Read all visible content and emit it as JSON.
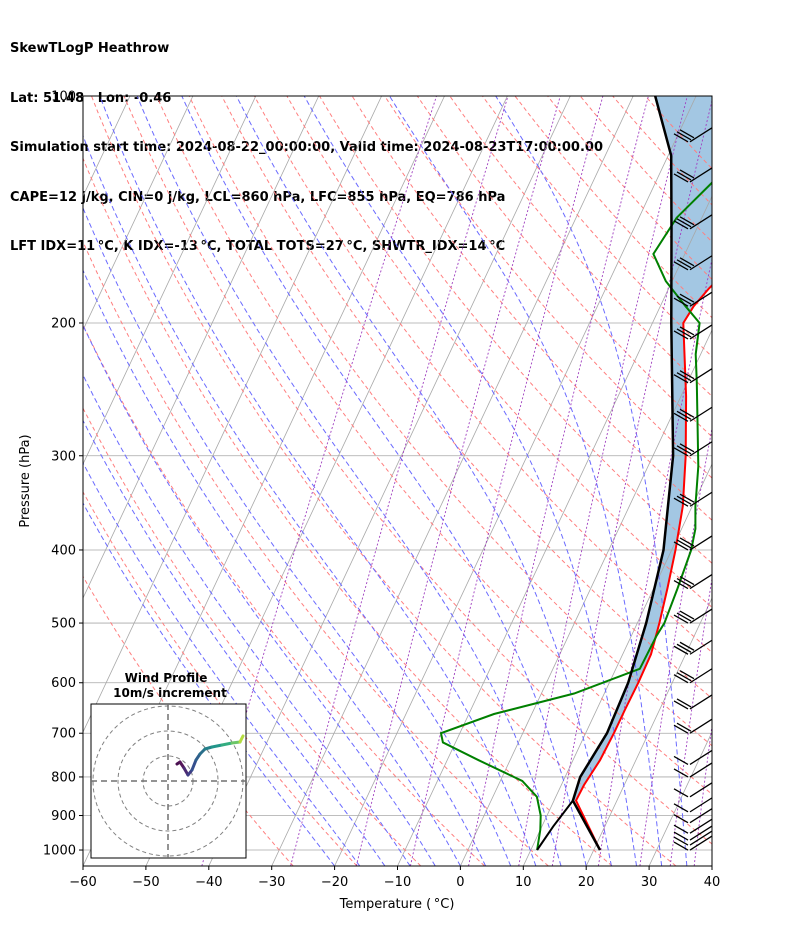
{
  "header": {
    "line1": "SkewTLogP Heathrow",
    "line2": "Lat: 51.48   Lon: -0.46",
    "line3": "Simulation start time: 2024-08-22_00:00:00, Valid time: 2024-08-23T17:00:00.00",
    "line4": "CAPE=12 j/kg, CIN=0 j/kg, LCL=860 hPa, LFC=855 hPa, EQ=786 hPa",
    "line5": "LFT IDX=11 °C, K IDX=-13 °C, TOTAL TOTS=27 °C, SHWTR_IDX=14 °C"
  },
  "hodograph": {
    "title": "Wind Profile",
    "subtitle": "10m/s increment"
  },
  "colors": {
    "temperature": "#ff0000",
    "dewpoint": "#008000",
    "parcel": "#000000",
    "cape_fill": "#7fb2d8",
    "isotherm": "#a8a8a8",
    "dry_adiabat": "#ff7f7f",
    "moist_adiabat": "#6b6bff",
    "mixing_ratio": "#a040c0"
  },
  "chart_data": {
    "type": "line",
    "xlabel": "Temperature ( °C)",
    "ylabel": "Pressure (hPa)",
    "xlim": [
      -60,
      40
    ],
    "ylim": [
      1050,
      100
    ],
    "y_scale": "log",
    "x_ticks": [
      -60,
      -50,
      -40,
      -30,
      -20,
      -10,
      0,
      10,
      20,
      30,
      40
    ],
    "y_ticks": [
      1000,
      900,
      800,
      700,
      600,
      500,
      400,
      300,
      200,
      100
    ],
    "grid": true,
    "series": [
      {
        "key": "temperature",
        "points": [
          [
            21,
            1000
          ],
          [
            13.5,
            860
          ],
          [
            13.6,
            820
          ],
          [
            14.3,
            760
          ],
          [
            14.5,
            700
          ],
          [
            14.5,
            650
          ],
          [
            14.6,
            600
          ],
          [
            14.5,
            550
          ],
          [
            13.5,
            500
          ],
          [
            12.2,
            450
          ],
          [
            10.6,
            400
          ],
          [
            8.5,
            350
          ],
          [
            5.2,
            300
          ],
          [
            0.8,
            250
          ],
          [
            -3.8,
            210
          ],
          [
            -5.1,
            200
          ],
          [
            -4.7,
            190
          ],
          [
            -3.6,
            180
          ],
          [
            -2.0,
            170
          ],
          [
            -0.1,
            160
          ],
          [
            1.4,
            150
          ],
          [
            2.9,
            140
          ],
          [
            5.4,
            130
          ],
          [
            9.7,
            120
          ],
          [
            13.1,
            110
          ],
          [
            15.6,
            100
          ]
        ]
      },
      {
        "key": "dewpoint",
        "points": [
          [
            11,
            1000
          ],
          [
            10,
            940
          ],
          [
            9,
            900
          ],
          [
            7,
            850
          ],
          [
            3.5,
            810
          ],
          [
            -5,
            760
          ],
          [
            -12,
            720
          ],
          [
            -13,
            700
          ],
          [
            -6,
            660
          ],
          [
            5.2,
            620
          ],
          [
            13.8,
            575
          ],
          [
            14,
            520
          ],
          [
            14.3,
            500
          ],
          [
            13.8,
            450
          ],
          [
            13.1,
            400
          ],
          [
            12.2,
            375
          ],
          [
            10.5,
            350
          ],
          [
            8,
            310
          ],
          [
            4.5,
            270
          ],
          [
            1.5,
            240
          ],
          [
            -0.8,
            220
          ],
          [
            -2.5,
            200
          ],
          [
            -6,
            190
          ],
          [
            -11,
            176
          ],
          [
            -15,
            162
          ],
          [
            -14,
            145
          ],
          [
            -10.5,
            128
          ],
          [
            -7.5,
            115
          ],
          [
            -4.5,
            100
          ]
        ]
      },
      {
        "key": "parcel",
        "points": [
          [
            21,
            1000
          ],
          [
            13,
            860
          ],
          [
            12.4,
            800
          ],
          [
            13.4,
            700
          ],
          [
            13.0,
            600
          ],
          [
            11.4,
            500
          ],
          [
            8.7,
            400
          ],
          [
            3.2,
            300
          ],
          [
            -7,
            200
          ],
          [
            -14,
            150
          ],
          [
            -19.5,
            120
          ],
          [
            -26.5,
            100
          ]
        ]
      },
      {
        "key": "parcel_low",
        "points": [
          [
            11,
            1000
          ],
          [
            11.8,
            930
          ],
          [
            13,
            860
          ]
        ]
      }
    ],
    "wind_barbs_pressure": [
      1000,
      985,
      970,
      950,
      920,
      890,
      850,
      800,
      770,
      700,
      650,
      600,
      550,
      500,
      450,
      400,
      350,
      300,
      270,
      240,
      210,
      190,
      170,
      150,
      130,
      115
    ]
  }
}
